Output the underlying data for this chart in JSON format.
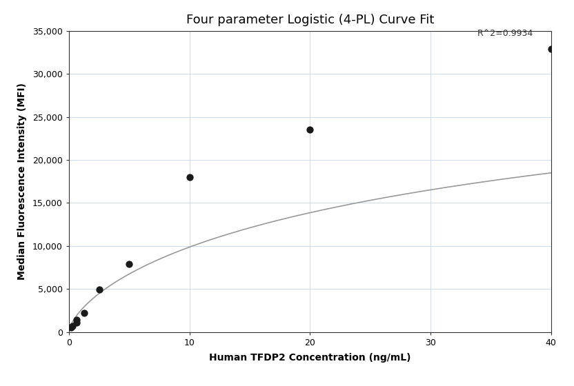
{
  "title": "Four parameter Logistic (4-PL) Curve Fit",
  "xlabel": "Human TFDP2 Concentration (ng/mL)",
  "ylabel": "Median Fluorescence Intensity (MFI)",
  "scatter_x": [
    0.156,
    0.313,
    0.625,
    0.625,
    1.25,
    2.5,
    5.0,
    10.0,
    20.0,
    40.0
  ],
  "scatter_y": [
    550,
    700,
    1100,
    1400,
    2200,
    4950,
    7900,
    18000,
    23500,
    32900
  ],
  "xlim": [
    0,
    40
  ],
  "ylim": [
    0,
    35000
  ],
  "xticks": [
    0,
    10,
    20,
    30,
    40
  ],
  "yticks": [
    0,
    5000,
    10000,
    15000,
    20000,
    25000,
    30000,
    35000
  ],
  "ytick_labels": [
    "0",
    "5,000",
    "10,000",
    "15,000",
    "20,000",
    "25,000",
    "30,000",
    "35,000"
  ],
  "r2_text": "R^2=0.9934",
  "r2_x": 38.5,
  "r2_y": 34200,
  "curve_color": "#999999",
  "scatter_color": "#1a1a1a",
  "background_color": "#ffffff",
  "grid_color": "#c8d4e8",
  "title_fontsize": 13,
  "axis_label_fontsize": 10,
  "tick_fontsize": 9,
  "annotation_fontsize": 9
}
